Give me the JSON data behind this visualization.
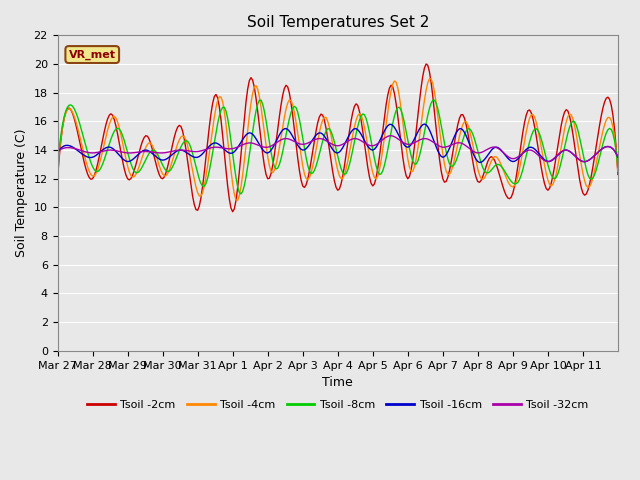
{
  "title": "Soil Temperatures Set 2",
  "xlabel": "Time",
  "ylabel": "Soil Temperature (C)",
  "ylim": [
    0,
    22
  ],
  "yticks": [
    0,
    2,
    4,
    6,
    8,
    10,
    12,
    14,
    16,
    18,
    20,
    22
  ],
  "annotation": "VR_met",
  "bg_color": "#e8e8e8",
  "series": [
    {
      "label": "Tsoil -2cm",
      "color": "#cc0000"
    },
    {
      "label": "Tsoil -4cm",
      "color": "#ff8800"
    },
    {
      "label": "Tsoil -8cm",
      "color": "#00cc00"
    },
    {
      "label": "Tsoil -16cm",
      "color": "#0000cc"
    },
    {
      "label": "Tsoil -32cm",
      "color": "#aa00aa"
    }
  ],
  "x_tick_labels": [
    "Mar 27",
    "Mar 28",
    "Mar 29",
    "Mar 30",
    "Mar 31",
    "Apr 1",
    "Apr 2",
    "Apr 3",
    "Apr 4",
    "Apr 5",
    "Apr 6",
    "Apr 7",
    "Apr 8",
    "Apr 9",
    "Apr 10",
    "Apr 11"
  ],
  "num_points": 337
}
